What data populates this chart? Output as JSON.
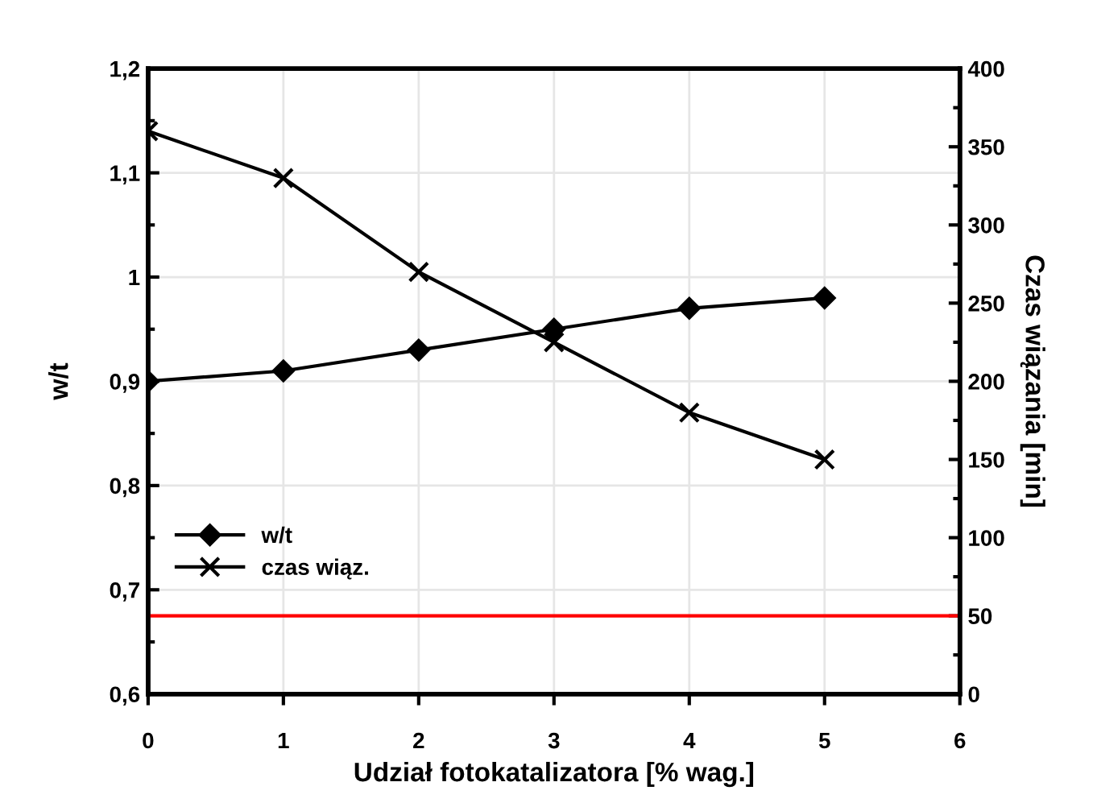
{
  "chart_data": {
    "type": "line",
    "xlabel": "Udział fotokatalizatora [% wag.]",
    "ylabel": "w/t",
    "y2label": "Czas wiązania [min]",
    "x": [
      0,
      1,
      2,
      3,
      4,
      5
    ],
    "series": [
      {
        "name": "w/t",
        "color": "#000000",
        "values": [
          0.9,
          0.91,
          0.93,
          0.95,
          0.97,
          0.98
        ],
        "marker": "diamond"
      },
      {
        "name": "czas wiąz.",
        "color": "#000000",
        "values": [
          360,
          330,
          270,
          225,
          180,
          150
        ],
        "marker": "cross",
        "axis": "y2"
      }
    ],
    "xlim": [
      0,
      6
    ],
    "xticks": [
      0,
      1,
      2,
      3,
      4,
      5,
      6
    ],
    "ylim": [
      0.6,
      1.2
    ],
    "yticks": [
      {
        "value": 0.6,
        "label": "0,6"
      },
      {
        "value": 0.7,
        "label": "0,7"
      },
      {
        "value": 0.8,
        "label": "0,8"
      },
      {
        "value": 0.9,
        "label": "0,9"
      },
      {
        "value": 1,
        "label": "1"
      },
      {
        "value": 1.1,
        "label": "1,1"
      },
      {
        "value": 1.2,
        "label": "1,2"
      }
    ],
    "y2lim": [
      0,
      400
    ],
    "y2ticks": [
      0,
      50,
      100,
      150,
      200,
      250,
      300,
      350,
      400
    ],
    "ref_lines": [
      {
        "axis": "y2",
        "value": 50,
        "color": "#ff0000"
      }
    ],
    "grid": true,
    "legend": "bottom left",
    "line_style": "solid"
  }
}
